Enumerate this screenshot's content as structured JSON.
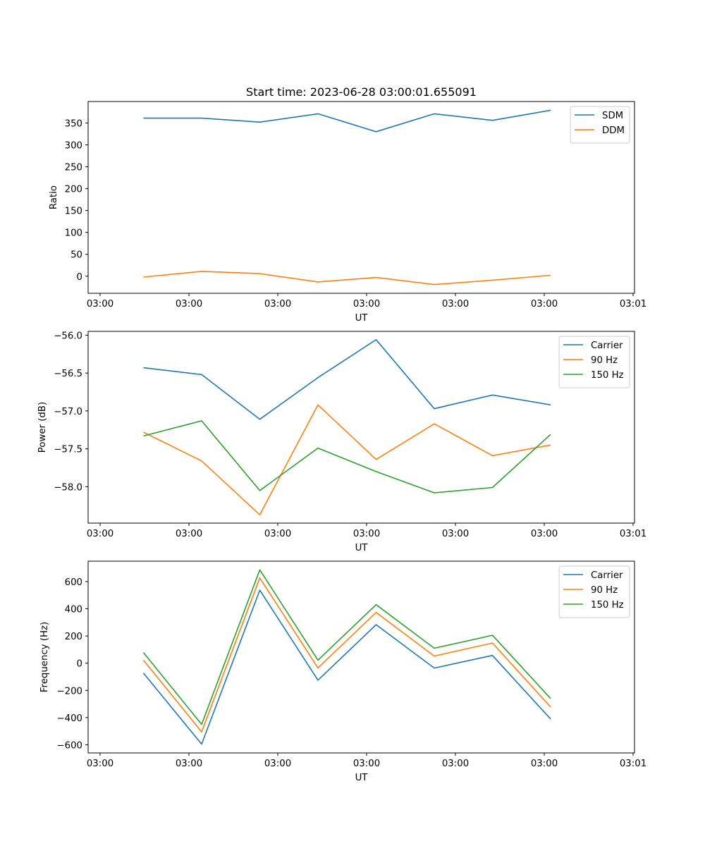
{
  "figure_title": "Start time: 2023-06-28 03:00:01.655091",
  "chart_data": [
    {
      "type": "line",
      "title": "Start time: 2023-06-28 03:00:01.655091",
      "xlabel": "UT",
      "ylabel": "Ratio",
      "x_tick_labels": [
        "03:00",
        "03:00",
        "03:00",
        "03:00",
        "03:00",
        "03:00",
        "03:01"
      ],
      "y_ticks": [
        0,
        50,
        100,
        150,
        200,
        250,
        300,
        350
      ],
      "y_tick_labels": [
        "0",
        "50",
        "100",
        "150",
        "200",
        "250",
        "300",
        "350"
      ],
      "ylim": [
        -39,
        399
      ],
      "grid": false,
      "legend": "top-right",
      "series": [
        {
          "name": "SDM",
          "color": "#1f77b4",
          "values": [
            361,
            361,
            352,
            371,
            330,
            371,
            356,
            379
          ]
        },
        {
          "name": "DDM",
          "color": "#ff7f0e",
          "values": [
            -2,
            11,
            6,
            -13,
            -3,
            -19,
            -9,
            2
          ]
        }
      ]
    },
    {
      "type": "line",
      "xlabel": "UT",
      "ylabel": "Power (dB)",
      "x_tick_labels": [
        "03:00",
        "03:00",
        "03:00",
        "03:00",
        "03:00",
        "03:00",
        "03:01"
      ],
      "y_ticks": [
        -56.0,
        -56.5,
        -57.0,
        -57.5,
        -58.0
      ],
      "y_tick_labels": [
        "−56.0",
        "−56.5",
        "−57.0",
        "−57.5",
        "−58.0"
      ],
      "ylim": [
        -58.48,
        -55.95
      ],
      "grid": false,
      "legend": "top-right",
      "series": [
        {
          "name": "Carrier",
          "color": "#1f77b4",
          "values": [
            -56.43,
            -56.52,
            -57.11,
            -56.56,
            -56.06,
            -56.97,
            -56.79,
            -56.92
          ]
        },
        {
          "name": "90 Hz",
          "color": "#ff7f0e",
          "values": [
            -57.28,
            -57.66,
            -58.37,
            -56.92,
            -57.64,
            -57.17,
            -57.59,
            -57.45
          ]
        },
        {
          "name": "150 Hz",
          "color": "#2ca02c",
          "values": [
            -57.33,
            -57.13,
            -58.05,
            -57.49,
            -57.8,
            -58.08,
            -58.01,
            -57.31
          ]
        }
      ]
    },
    {
      "type": "line",
      "xlabel": "UT",
      "ylabel": "Frequency (Hz)",
      "x_tick_labels": [
        "03:00",
        "03:00",
        "03:00",
        "03:00",
        "03:00",
        "03:00",
        "03:01"
      ],
      "y_ticks": [
        -600,
        -400,
        -200,
        0,
        200,
        400,
        600
      ],
      "y_tick_labels": [
        "−600",
        "−400",
        "−200",
        "0",
        "200",
        "400",
        "600"
      ],
      "ylim": [
        -660,
        750
      ],
      "grid": false,
      "legend": "top-right",
      "series": [
        {
          "name": "Carrier",
          "color": "#1f77b4",
          "values": [
            -73,
            -595,
            537,
            -125,
            283,
            -36,
            57,
            -410
          ]
        },
        {
          "name": "90 Hz",
          "color": "#ff7f0e",
          "values": [
            22,
            -505,
            627,
            -35,
            373,
            52,
            148,
            -322
          ]
        },
        {
          "name": "150 Hz",
          "color": "#2ca02c",
          "values": [
            78,
            -450,
            686,
            22,
            430,
            110,
            205,
            -260
          ]
        }
      ]
    }
  ]
}
